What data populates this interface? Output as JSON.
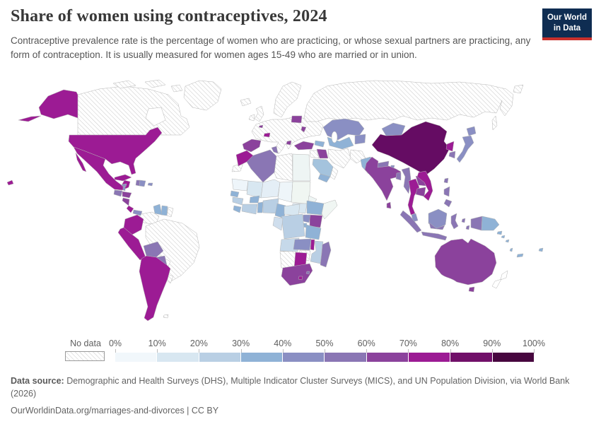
{
  "header": {
    "title": "Share of women using contraceptives, 2024",
    "subtitle": "Contraceptive prevalence rate is the percentage of women who are practicing, or whose sexual partners are practicing, any form of contraception. It is usually measured for women ages 15-49 who are married or in union.",
    "logo": {
      "line1": "Our World",
      "line2": "in Data",
      "bg_color": "#0f2d52",
      "accent_color": "#c9302c"
    }
  },
  "chart_data": {
    "type": "choropleth",
    "title": "Share of women using contraceptives, 2024",
    "year": "2024",
    "unit": "%",
    "legend": {
      "no_data_label": "No data",
      "tick_labels": [
        "0%",
        "10%",
        "20%",
        "30%",
        "40%",
        "50%",
        "60%",
        "70%",
        "80%",
        "90%",
        "100%"
      ],
      "bins": [
        {
          "range": "0-10%",
          "color": "#f1f7fb"
        },
        {
          "range": "10-20%",
          "color": "#d8e7f1"
        },
        {
          "range": "20-30%",
          "color": "#b9cfe4"
        },
        {
          "range": "30-40%",
          "color": "#8fb2d6"
        },
        {
          "range": "40-50%",
          "color": "#8a8fc3"
        },
        {
          "range": "50-60%",
          "color": "#8a76b4"
        },
        {
          "range": "60-70%",
          "color": "#8b429c"
        },
        {
          "range": "70-80%",
          "color": "#9c1b94"
        },
        {
          "range": "80-90%",
          "color": "#711069"
        },
        {
          "range": "90-100%",
          "color": "#47073f"
        }
      ]
    },
    "regions_by_bin": {
      "80-90%": [
        "China"
      ],
      "70-80%": [
        "United States",
        "Mexico",
        "Cuba",
        "Costa Rica",
        "Colombia",
        "Peru",
        "Ecuador",
        "Chile",
        "Argentina",
        "Morocco",
        "Switzerland",
        "Thailand",
        "Vietnam",
        "North Korea",
        "Botswana",
        "Malawi",
        "Lesotho"
      ],
      "60-70%": [
        "Spain",
        "Belgium",
        "Belarus",
        "Moldova",
        "Turkey",
        "Iraq",
        "India",
        "Sri Lanka",
        "Laos",
        "Cambodia",
        "Honduras",
        "Nicaragua",
        "Australia",
        "South Africa",
        "Kenya"
      ],
      "50-60%": [
        "Guatemala",
        "Bolivia",
        "Paraguay",
        "Algeria",
        "Tunisia",
        "Nepal",
        "Bangladesh",
        "Myanmar",
        "South Korea",
        "Indonesia",
        "Philippines",
        "Madagascar",
        "Eswatini",
        "Haiti"
      ],
      "40-50%": [
        "Kazakhstan",
        "Mongolia",
        "Japan",
        "Uganda",
        "Zambia",
        "Dominican Republic",
        "Jamaica",
        "Panama",
        "Belize",
        "Malaysia"
      ],
      "30-40%": [
        "Pakistan",
        "Turkmenistan",
        "Uzbekistan",
        "Georgia",
        "Azerbaijan",
        "Saudi Arabia",
        "Yemen",
        "Ethiopia",
        "Senegal",
        "Sierra Leone",
        "Liberia",
        "Burkina Faso",
        "Togo",
        "Benin",
        "Cameroon",
        "Tanzania",
        "Guyana",
        "Suriname",
        "Papua New Guinea",
        "Solomon Islands",
        "Fiji"
      ],
      "20-30%": [
        "Guinea",
        "Ghana",
        "Cote d'Ivoire",
        "Nigeria",
        "DR Congo",
        "Mozambique"
      ],
      "10-20%": [
        "Mali",
        "Central African Republic",
        "South Sudan",
        "Gabon",
        "Congo",
        "Angola"
      ],
      "0-10%": [
        "Egypt",
        "Sudan",
        "Chad",
        "Niger",
        "Mauritania",
        "Somalia",
        "Eritrea"
      ]
    },
    "no_data_regions": [
      "Canada",
      "Greenland",
      "Iceland",
      "United Kingdom",
      "Ireland",
      "Norway",
      "Sweden",
      "Finland",
      "France",
      "Germany",
      "Italy",
      "Poland",
      "Ukraine",
      "Greece",
      "Russia",
      "Brazil",
      "Venezuela",
      "French Guiana",
      "Uruguay",
      "Libya",
      "Western Sahara",
      "Namibia",
      "Zimbabwe",
      "Iran",
      "Afghanistan",
      "Syria",
      "Jordan",
      "Oman",
      "New Zealand"
    ],
    "region_colors": {
      "usa": "#9c1b94",
      "mexico": "#9c1b94",
      "guatemala": "#8a76b4",
      "belize": "#8a8fc3",
      "honduras": "#8b429c",
      "nicaragua": "#8b429c",
      "costa_rica": "#9c1b94",
      "panama": "#8a8fc3",
      "cuba": "#9c1b94",
      "jamaica": "#8a8fc3",
      "haiti": "#8a76b4",
      "dominican_republic": "#8a8fc3",
      "puerto_rico": "#8a8fc3",
      "guyana": "#8fb2d6",
      "suriname": "#8fb2d6",
      "colombia": "#9c1b94",
      "peru": "#9c1b94",
      "bolivia": "#8a76b4",
      "paraguay": "#8a76b4",
      "argentina_chile": "#9c1b94",
      "spain": "#8b429c",
      "switzerland": "#9c1b94",
      "belgium": "#8b429c",
      "belarus": "#8b429c",
      "moldova": "#8b429c",
      "north_macedonia": "#8b429c",
      "turkey": "#8b429c",
      "caucasus": "#8fb2d6",
      "iraq": "#8b429c",
      "saudi_arabia": "#a4c3dd",
      "yemen": "#8fb2d6",
      "kazakhstan": "#8a8fc3",
      "uzbekistan_turkmenistan": "#8fb2d6",
      "kyrgyzstan_tajikistan": "#8a8fc3",
      "pakistan": "#8fb2d6",
      "morocco": "#9c1b94",
      "algeria": "#8a76b4",
      "tunisia": "#8a76b4",
      "egypt": "#eef5f4",
      "mauritania": "#eef5fa",
      "mali": "#d8e7f1",
      "niger": "#e4eef6",
      "chad": "#eef5f9",
      "sudan": "#f0f6f2",
      "south_sudan": "#d8e7f1",
      "eritrea": "#eef5f4",
      "senegal": "#8fb2d6",
      "guinea": "#b9cfe4",
      "sierra_leone_liberia": "#8fb2d6",
      "burkina_faso": "#8fb2d6",
      "cote_divoire_ghana": "#b9cfe4",
      "togo_benin": "#8fb2d6",
      "nigeria": "#b9cfe4",
      "cameroon": "#8fb2d6",
      "central_african_republic": "#d8e7f1",
      "ethiopia": "#8fb2d6",
      "somalia": "#f0f6f3",
      "kenya": "#8b429c",
      "uganda": "#8a8fc3",
      "rwanda_burundi": "#8fb2d6",
      "drc": "#b9cfe4",
      "gabon_congo": "#cfdeed",
      "tanzania": "#8fb2d6",
      "angola": "#c6d9ea",
      "zambia": "#8a8fc3",
      "malawi": "#9c1b94",
      "mozambique": "#b9cfe4",
      "botswana": "#9c1b94",
      "south_africa": "#8b429c",
      "lesotho": "#9c1b94",
      "eswatini": "#8a76b4",
      "madagascar": "#8a76b4",
      "china": "#650c63",
      "mongolia": "#8a8fc3",
      "north_korea": "#9c1b94",
      "south_korea": "#8a76b4",
      "japan": "#8a8fc3",
      "taiwan": "#8a76b4",
      "nepal": "#8a76b4",
      "bhutan": "#8a8fc3",
      "india": "#8b429c",
      "sri_lanka": "#8b429c",
      "bangladesh": "#8a76b4",
      "myanmar": "#8a76b4",
      "thailand": "#9c1b94",
      "laos": "#8b429c",
      "cambodia": "#8b429c",
      "vietnam": "#9c1b94",
      "malaysia": "#8a8fc3",
      "indonesia": "#8a76b4",
      "philippines": "#8a76b4",
      "papua_new_guinea": "#8fb2d6",
      "solomon_islands": "#8fb2d6",
      "vanuatu": "#8fb2d6",
      "fiji": "#8fb2d6",
      "new_caledonia": "#8fb2d6",
      "australia": "#8b429c"
    }
  },
  "footer": {
    "source_label": "Data source:",
    "source_text": " Demographic and Health Surveys (DHS), Multiple Indicator Cluster Surveys (MICS), and UN Population Division, via World Bank (2026)",
    "link_text": "OurWorldinData.org/marriages-and-divorces | CC BY"
  }
}
